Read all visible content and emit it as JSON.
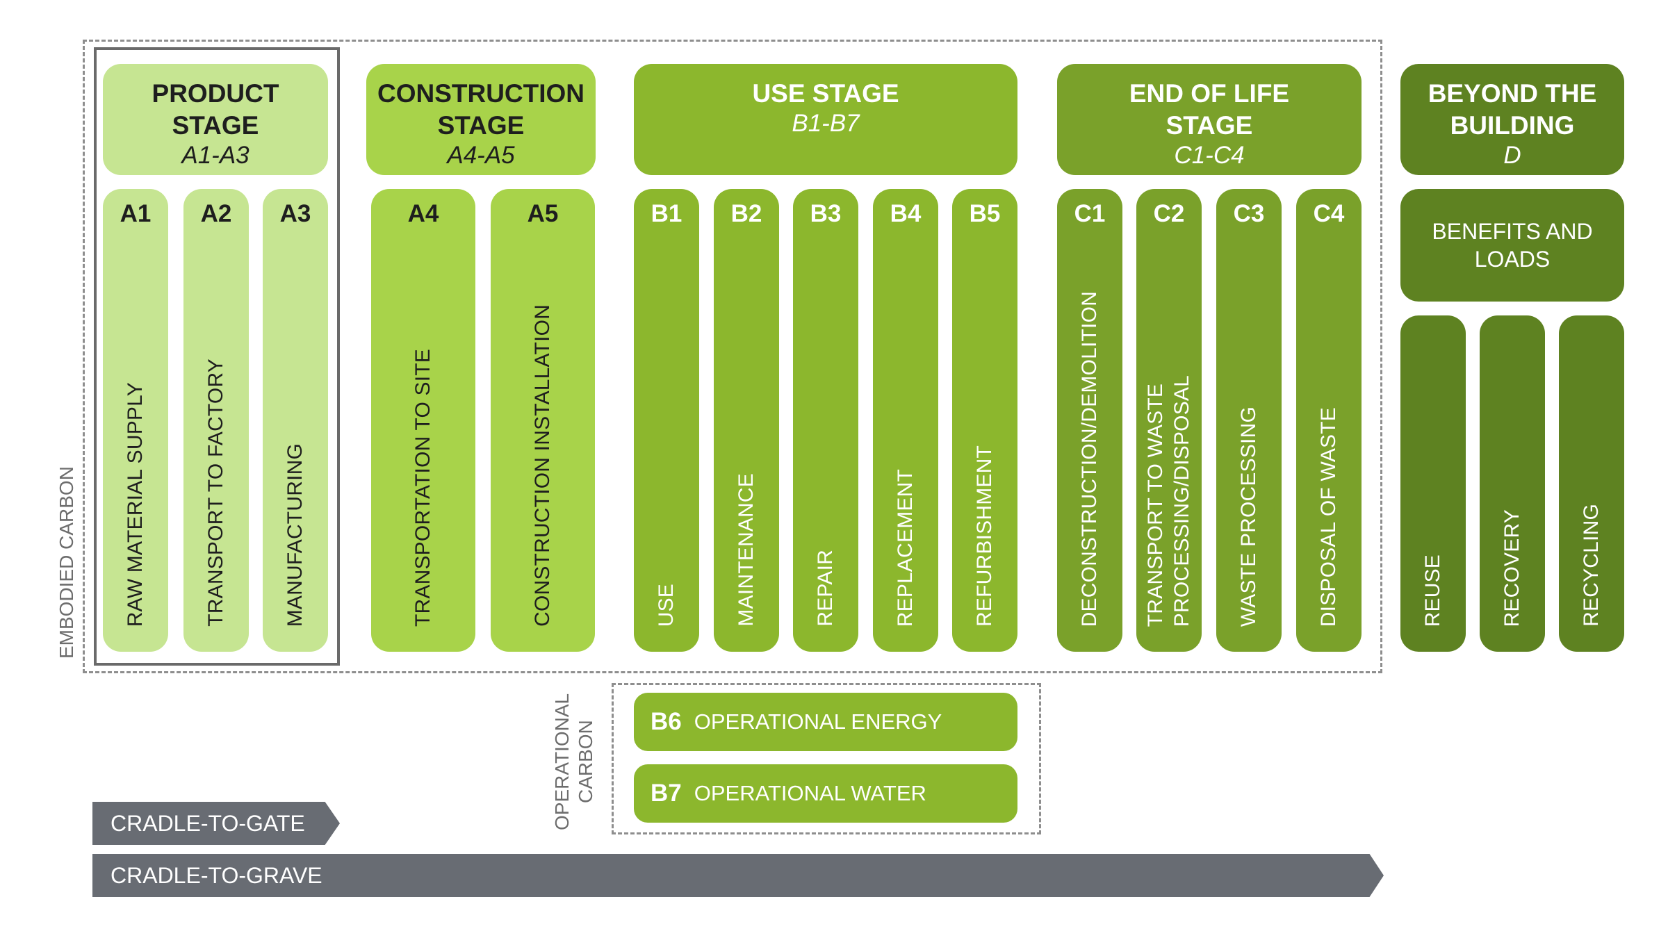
{
  "embodied_label": "EMBODIED CARBON",
  "operational_label": "OPERATIONAL\nCARBON",
  "stages": {
    "product": {
      "title": "PRODUCT\nSTAGE",
      "sub": "A1-A3"
    },
    "construction": {
      "title": "CONSTRUCTION\nSTAGE",
      "sub": "A4-A5"
    },
    "use": {
      "title": "USE STAGE",
      "sub": "B1-B7"
    },
    "eol": {
      "title": "END OF LIFE\nSTAGE",
      "sub": "C1-C4"
    },
    "beyond": {
      "title": "BEYOND THE\nBUILDING",
      "sub": "D"
    }
  },
  "modules": {
    "a1": {
      "code": "A1",
      "label": "RAW MATERIAL SUPPLY"
    },
    "a2": {
      "code": "A2",
      "label": "TRANSPORT TO FACTORY"
    },
    "a3": {
      "code": "A3",
      "label": "MANUFACTURING"
    },
    "a4": {
      "code": "A4",
      "label": "TRANSPORTATION TO SITE"
    },
    "a5": {
      "code": "A5",
      "label": "CONSTRUCTION INSTALLATION"
    },
    "b1": {
      "code": "B1",
      "label": "USE"
    },
    "b2": {
      "code": "B2",
      "label": "MAINTENANCE"
    },
    "b3": {
      "code": "B3",
      "label": "REPAIR"
    },
    "b4": {
      "code": "B4",
      "label": "REPLACEMENT"
    },
    "b5": {
      "code": "B5",
      "label": "REFURBISHMENT"
    },
    "c1": {
      "code": "C1",
      "label": "DECONSTRUCTION/DEMOLITION"
    },
    "c2": {
      "code": "C2",
      "label": "TRANSPORT TO WASTE\nPROCESSING/DISPOSAL"
    },
    "c3": {
      "code": "C3",
      "label": "WASTE PROCESSING"
    },
    "c4": {
      "code": "C4",
      "label": "DISPOSAL OF WASTE"
    },
    "b6": {
      "code": "B6",
      "label": "OPERATIONAL ENERGY"
    },
    "b7": {
      "code": "B7",
      "label": "OPERATIONAL WATER"
    }
  },
  "beyond": {
    "benefits": "BENEFITS AND\nLOADS",
    "reuse": "REUSE",
    "recovery": "RECOVERY",
    "recycling": "RECYCLING"
  },
  "scopes": {
    "gate": "CRADLE-TO-GATE",
    "grave": "CRADLE-TO-GRAVE"
  },
  "colors": {
    "product": "#c6e592",
    "construction": "#a8d34a",
    "use": "#8cb72d",
    "end_of_life": "#7aa12a",
    "beyond": "#5e8221",
    "arrow": "#686c73"
  }
}
